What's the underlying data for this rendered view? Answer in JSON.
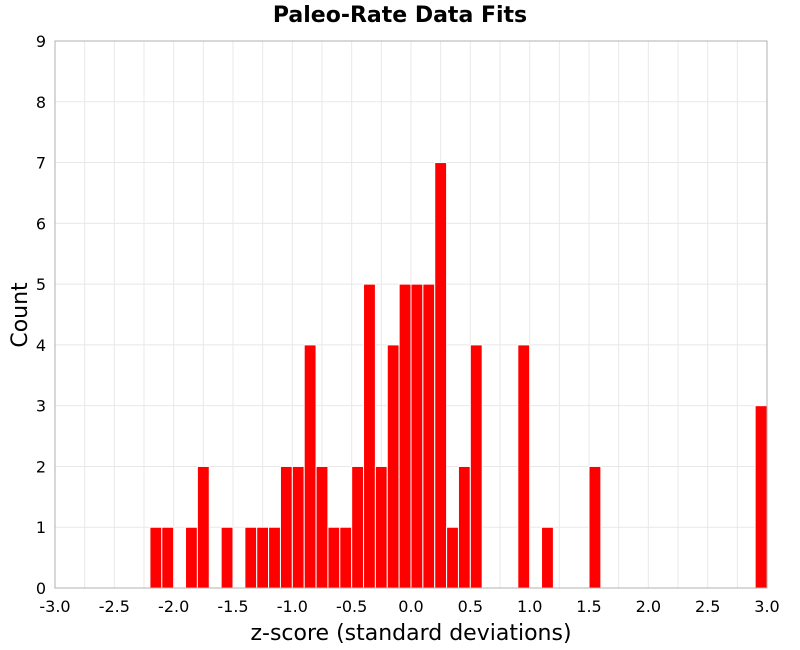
{
  "chart_data": {
    "type": "bar",
    "title": "Paleo-Rate Data Fits",
    "xlabel": "z-score (standard deviations)",
    "ylabel": "Count",
    "xlim": [
      -3.0,
      3.0
    ],
    "ylim": [
      0,
      9
    ],
    "bin_width": 0.1,
    "xticks": [
      "-3.0",
      "-2.5",
      "-2.0",
      "-1.5",
      "-1.0",
      "-0.5",
      "0.0",
      "0.5",
      "1.0",
      "1.5",
      "2.0",
      "2.5",
      "3.0"
    ],
    "yticks": [
      "0",
      "1",
      "2",
      "3",
      "4",
      "5",
      "6",
      "7",
      "8",
      "9"
    ],
    "grid": true,
    "bar_color": "#ff0000",
    "bins": [
      {
        "x": -2.15,
        "count": 1
      },
      {
        "x": -2.05,
        "count": 1
      },
      {
        "x": -1.85,
        "count": 1
      },
      {
        "x": -1.75,
        "count": 2
      },
      {
        "x": -1.55,
        "count": 1
      },
      {
        "x": -1.35,
        "count": 1
      },
      {
        "x": -1.25,
        "count": 1
      },
      {
        "x": -1.15,
        "count": 1
      },
      {
        "x": -1.05,
        "count": 2
      },
      {
        "x": -0.95,
        "count": 2
      },
      {
        "x": -0.85,
        "count": 4
      },
      {
        "x": -0.75,
        "count": 2
      },
      {
        "x": -0.65,
        "count": 1
      },
      {
        "x": -0.55,
        "count": 1
      },
      {
        "x": -0.45,
        "count": 2
      },
      {
        "x": -0.35,
        "count": 5
      },
      {
        "x": -0.25,
        "count": 2
      },
      {
        "x": -0.15,
        "count": 4
      },
      {
        "x": -0.05,
        "count": 5
      },
      {
        "x": 0.05,
        "count": 5
      },
      {
        "x": 0.15,
        "count": 5
      },
      {
        "x": 0.25,
        "count": 7
      },
      {
        "x": 0.35,
        "count": 1
      },
      {
        "x": 0.45,
        "count": 2
      },
      {
        "x": 0.55,
        "count": 4
      },
      {
        "x": 0.95,
        "count": 4
      },
      {
        "x": 1.15,
        "count": 1
      },
      {
        "x": 1.55,
        "count": 2
      },
      {
        "x": 2.95,
        "count": 3
      }
    ]
  }
}
